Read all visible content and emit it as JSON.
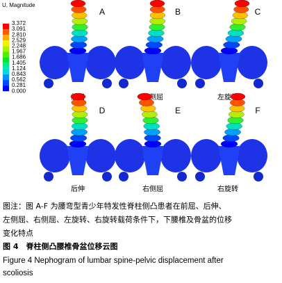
{
  "legend": {
    "title": "U, Magnitude",
    "labels": [
      "3.372",
      "3.091",
      "2.810",
      "2.529",
      "2.248",
      "1.967",
      "1.686",
      "1.405",
      "1.124",
      "0.843",
      "0.562",
      "0.281",
      "0.000"
    ],
    "colors": [
      "#ff0000",
      "#ff5a00",
      "#ffab00",
      "#f2f200",
      "#a8f200",
      "#50ee00",
      "#00e830",
      "#00e89a",
      "#00d8e8",
      "#0090ff",
      "#0048ff",
      "#0000ff"
    ]
  },
  "panels": [
    {
      "letter": "A",
      "label": "前屈"
    },
    {
      "letter": "B",
      "label": "左侧屈"
    },
    {
      "letter": "C",
      "label": "左旋转"
    },
    {
      "letter": "D",
      "label": "后伸"
    },
    {
      "letter": "E",
      "label": "右侧屈"
    },
    {
      "letter": "F",
      "label": "右旋转"
    }
  ],
  "caption": {
    "note_lines": [
      "图注：图 A-F 为腰弯型青少年特发性脊柱侧凸患者在前屈、后伸、",
      "左侧屈、右侧屈、左旋转、右旋转载荷条件下，下腰椎及骨盆的位移",
      "变化特点"
    ],
    "title_cn": "图 4　脊柱侧凸腰椎骨盆位移云图",
    "title_en_lines": [
      "Figure 4     Nephogram of lumbar spine-pelvic displacement after",
      "scoliosis"
    ]
  }
}
